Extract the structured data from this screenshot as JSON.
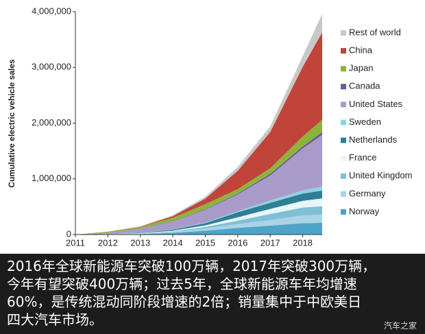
{
  "chart_data": {
    "type": "stacked_area",
    "y_label": "Cumulative electric vehicle sales",
    "x": [
      2011,
      2012,
      2013,
      2014,
      2015,
      2016,
      2017,
      2018,
      2018.6
    ],
    "xlim": [
      2011,
      2018.6
    ],
    "xticks": [
      2011,
      2012,
      2013,
      2014,
      2015,
      2016,
      2017,
      2018
    ],
    "ylim": [
      0,
      4000000
    ],
    "yticks": [
      0,
      {
        "value": 1000000,
        "label": "1,000,000"
      },
      {
        "value": 2000000,
        "label": "2,000,000"
      },
      {
        "value": 3000000,
        "label": "3,000,000"
      },
      {
        "value": 4000000,
        "label": "4,000,000"
      }
    ],
    "series": [
      {
        "name": "Norway",
        "color": "#4fa3c7",
        "values": [
          0,
          2000,
          10000,
          30000,
          70000,
          120000,
          160000,
          205000,
          210000
        ]
      },
      {
        "name": "Germany",
        "color": "#a9d4e4",
        "values": [
          0,
          2000,
          6000,
          15000,
          40000,
          70000,
          100000,
          140000,
          150000
        ]
      },
      {
        "name": "United Kingdom",
        "color": "#7fbfd6",
        "values": [
          0,
          2000,
          4000,
          10000,
          25000,
          60000,
          110000,
          140000,
          150000
        ]
      },
      {
        "name": "France",
        "color": "#e8f5fa",
        "values": [
          0,
          2000,
          6000,
          15000,
          30000,
          60000,
          90000,
          120000,
          140000
        ]
      },
      {
        "name": "Netherlands",
        "color": "#2e7f95",
        "values": [
          0,
          1000,
          6000,
          20000,
          40000,
          90000,
          110000,
          130000,
          140000
        ]
      },
      {
        "name": "Sweden",
        "color": "#8fd3e0",
        "values": [
          0,
          500,
          2000,
          5000,
          10000,
          20000,
          40000,
          60000,
          70000
        ]
      },
      {
        "name": "United States",
        "color": "#a99bc9",
        "values": [
          0,
          20000,
          70000,
          140000,
          230000,
          300000,
          450000,
          750000,
          930000
        ]
      },
      {
        "name": "Canada",
        "color": "#6b5b9a",
        "values": [
          0,
          1000,
          3000,
          6000,
          10000,
          15000,
          30000,
          35000,
          50000
        ]
      },
      {
        "name": "Japan",
        "color": "#8db33a",
        "values": [
          0,
          15000,
          30000,
          60000,
          90000,
          80000,
          100000,
          180000,
          220000
        ]
      },
      {
        "name": "China",
        "color": "#c0443a",
        "values": [
          0,
          5000,
          5000,
          30000,
          100000,
          330000,
          650000,
          1250000,
          1570000
        ]
      },
      {
        "name": "Rest of world",
        "color": "#c8c8c8",
        "values": [
          0,
          2000,
          8000,
          15000,
          35000,
          70000,
          100000,
          190000,
          330000
        ]
      }
    ]
  },
  "caption": [
    "2016年全球新能源车突破100万辆，2017年突破300万辆，",
    "今年有望突破400万辆；过去5年，全球新能源车年均增速",
    "60%，是传统混动同阶段增速的2倍；销量集中于中欧美日",
    "四大汽车市场。"
  ],
  "watermark": "汽车之家"
}
